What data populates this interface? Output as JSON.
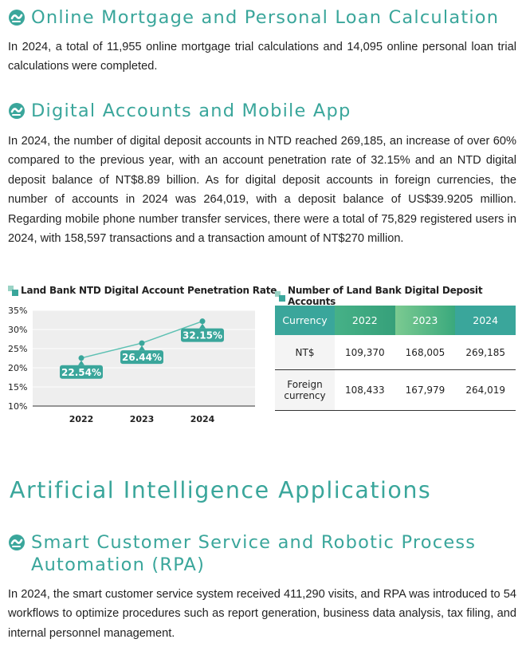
{
  "sections": {
    "mortgage": {
      "title": "Online Mortgage and Personal Loan Calculation",
      "text": "In 2024, a total of 11,955 online mortgage trial calculations and 14,095 online personal loan trial calculations were completed."
    },
    "digital": {
      "title": "Digital Accounts and Mobile App",
      "text": "In 2024, the number of digital deposit accounts in NTD reached 269,185, an increase of over 60% compared to the previous year, with an account penetration rate of 32.15% and an NTD digital deposit balance of NT$8.89 billion. As for digital deposit accounts in foreign currencies, the number of accounts in 2024 was 264,019, with a deposit balance of US$39.9205 million. Regarding mobile phone number transfer services, there were a total of 75,829 registered users in 2024, with 158,597 transactions and a transaction amount of NT$270 million."
    },
    "ai": {
      "heading": "Artificial Intelligence Applications",
      "title_line1": "Smart Customer Service and Robotic Process",
      "title_line2": "Automation (RPA)",
      "text": "In 2024, the smart customer service system received 411,290 visits, and RPA was introduced to 54 workflows to optimize procedures such as report generation, business data analysis, tax filing, and internal personnel management."
    }
  },
  "colors": {
    "accent": "#3aa69b",
    "line": "#5cc0b2",
    "chart_bg": "#eeeeee"
  },
  "chart_data": {
    "type": "line",
    "title": "Land Bank NTD Digital Account Penetration Rate",
    "categories": [
      "2022",
      "2023",
      "2024"
    ],
    "values": [
      22.54,
      26.44,
      32.15
    ],
    "labels": [
      "22.54%",
      "26.44%",
      "32.15%"
    ],
    "ylim": [
      10,
      35
    ],
    "yticks": [
      10,
      15,
      20,
      25,
      30,
      35
    ],
    "yticklabels": [
      "10%",
      "15%",
      "20%",
      "25%",
      "30%",
      "35%"
    ],
    "xlabel": "",
    "ylabel": ""
  },
  "table": {
    "title": "Number of Land Bank Digital Deposit Accounts",
    "headers": [
      "Currency",
      "2022",
      "2023",
      "2024"
    ],
    "rows": [
      {
        "label": "NT$",
        "label2": "",
        "values": [
          "109,370",
          "168,005",
          "269,185"
        ]
      },
      {
        "label": "Foreign",
        "label2": "currency",
        "values": [
          "108,433",
          "167,979",
          "264,019"
        ]
      }
    ]
  }
}
